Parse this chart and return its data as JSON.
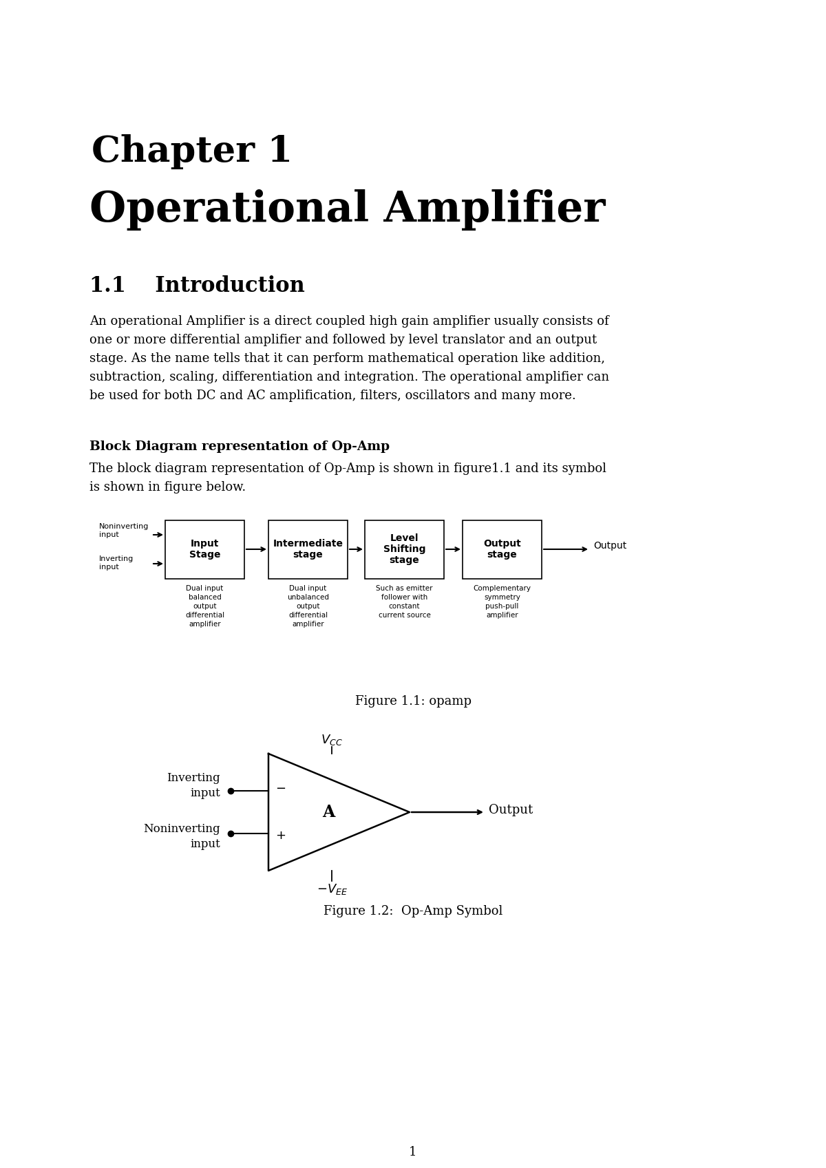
{
  "page_bg": "#ffffff",
  "chapter_title": "Chapter 1",
  "section_title": "Operational Amplifier",
  "section_num": "1.1",
  "section_heading": "Introduction",
  "intro_text": "An operational Amplifier is a direct coupled high gain amplifier usually consists of\none or more differential amplifier and followed by level translator and an output\nstage. As the name tells that it can perform mathematical operation like addition,\nsubtraction, scaling, differentiation and integration. The operational amplifier can\nbe used for both DC and AC amplification, filters, oscillators and many more.",
  "block_heading": "Block Diagram representation of Op-Amp",
  "block_subtext": "The block diagram representation of Op-Amp is shown in figure1.1 and its symbol\nis shown in figure below.",
  "figure1_caption": "Figure 1.1: opamp",
  "figure2_caption": "Figure 1.2:  Op-Amp Symbol",
  "page_number": "1",
  "blocks": [
    {
      "label": "Input\nStage",
      "sub": "Dual input\nbalanced\noutput\ndifferential\namplifier"
    },
    {
      "label": "Intermediate\nstage",
      "sub": "Dual input\nunbalanced\noutput\ndifferential\namplifier"
    },
    {
      "label": "Level\nShifting\nstage",
      "sub": "Such as emitter\nfollower with\nconstant\ncurrent source"
    },
    {
      "label": "Output\nstage",
      "sub": "Complementary\nsymmetry\npush-pull\namplifier"
    }
  ]
}
